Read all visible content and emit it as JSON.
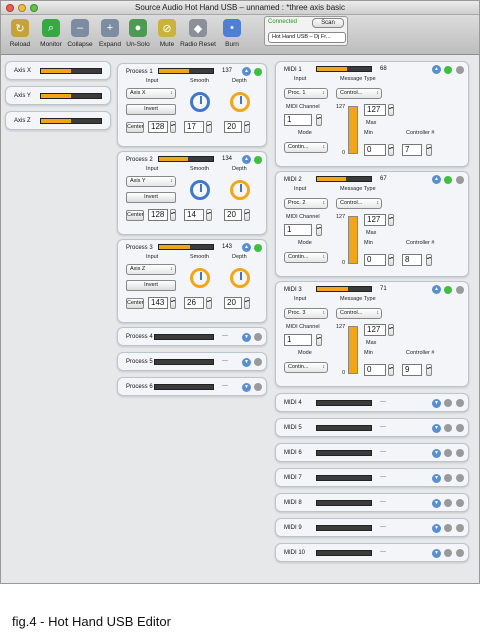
{
  "window": {
    "title": "Source Audio Hot Hand USB – unnamed : *three axis basic"
  },
  "toolbar": {
    "items": [
      {
        "label": "Reload",
        "icon": "reload-icon"
      },
      {
        "label": "Monitor",
        "icon": "monitor-icon"
      },
      {
        "label": "Collapse",
        "icon": "collapse-icon"
      },
      {
        "label": "Expand",
        "icon": "expand-icon"
      },
      {
        "label": "Un-Solo",
        "icon": "unsolo-icon"
      },
      {
        "label": "Mute",
        "icon": "mute-icon"
      },
      {
        "label": "Radio Reset",
        "icon": "radio-reset-icon"
      },
      {
        "label": "Burn",
        "icon": "burn-icon"
      }
    ]
  },
  "connection": {
    "status": "Connected",
    "scan_label": "Scan",
    "device": "Hot Hand USB – Dj Fr..."
  },
  "axes": [
    {
      "label": "Axis X"
    },
    {
      "label": "Axis Y"
    },
    {
      "label": "Axis Z"
    }
  ],
  "process_labels": {
    "input": "Input",
    "smooth": "Smooth",
    "depth": "Depth",
    "invert": "Invert",
    "center": "Center"
  },
  "processes": [
    {
      "name": "Process 1",
      "value": "137",
      "meter": 0.55,
      "input": "Axis X",
      "center": "128",
      "smooth": "17",
      "depth": "20"
    },
    {
      "name": "Process 2",
      "value": "134",
      "meter": 0.53,
      "input": "Axis Y",
      "center": "128",
      "smooth": "14",
      "depth": "20"
    },
    {
      "name": "Process 3",
      "value": "143",
      "meter": 0.57,
      "input": "Axis Z",
      "center": "143",
      "smooth": "26",
      "depth": "20"
    }
  ],
  "processes_collapsed": [
    {
      "name": "Process 4",
      "value": "---"
    },
    {
      "name": "Process 5",
      "value": "---"
    },
    {
      "name": "Process 6",
      "value": "---"
    }
  ],
  "midi_labels": {
    "input": "Input",
    "message_type": "Message Type",
    "midi_channel": "MIDI Channel",
    "mode": "Mode",
    "max": "Max",
    "min": "Min",
    "controller": "Controller #",
    "range_top": "127",
    "range_bottom": "0"
  },
  "midis": [
    {
      "name": "MIDI 1",
      "value": "68",
      "meter": 0.55,
      "input": "Proc. 1",
      "message_type": "Control...",
      "channel": "1",
      "mode": "Contin...",
      "max": "127",
      "min": "0",
      "controller": "7"
    },
    {
      "name": "MIDI 2",
      "value": "67",
      "meter": 0.53,
      "input": "Proc. 2",
      "message_type": "Control...",
      "channel": "1",
      "mode": "Contin...",
      "max": "127",
      "min": "0",
      "controller": "8"
    },
    {
      "name": "MIDI 3",
      "value": "71",
      "meter": 0.57,
      "input": "Proc. 3",
      "message_type": "Control...",
      "channel": "1",
      "mode": "Contin...",
      "max": "127",
      "min": "0",
      "controller": "9"
    }
  ],
  "midis_collapsed": [
    {
      "name": "MIDI 4",
      "value": "---"
    },
    {
      "name": "MIDI 5",
      "value": "---"
    },
    {
      "name": "MIDI 6",
      "value": "---"
    },
    {
      "name": "MIDI 7",
      "value": "---"
    },
    {
      "name": "MIDI 8",
      "value": "---"
    },
    {
      "name": "MIDI 9",
      "value": "---"
    },
    {
      "name": "MIDI 10",
      "value": "---"
    }
  ],
  "caption": "fig.4 - Hot Hand USB Editor"
}
